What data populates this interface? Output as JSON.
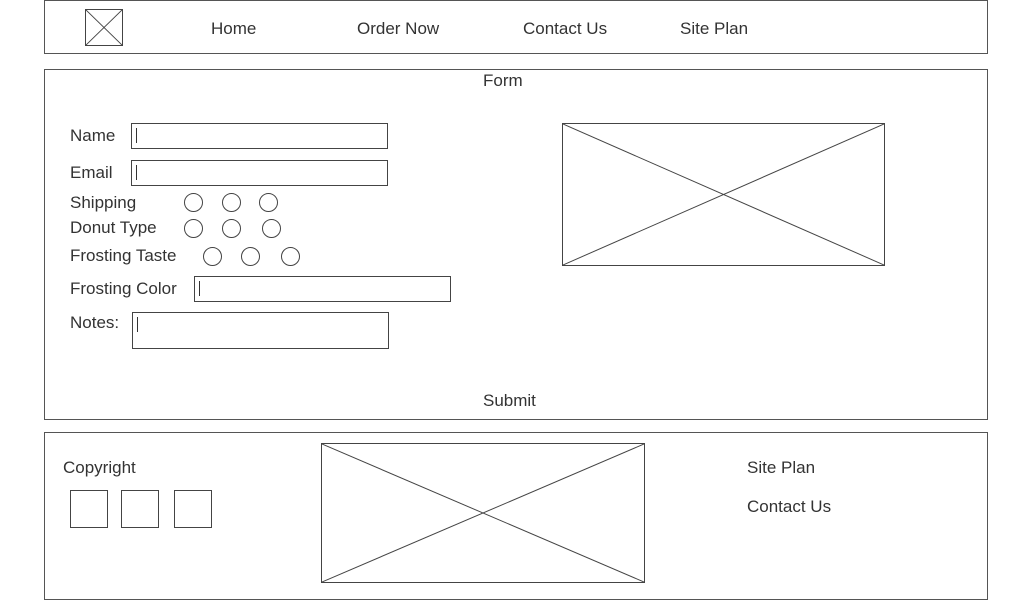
{
  "nav": {
    "items": [
      {
        "label": "Home"
      },
      {
        "label": "Order Now"
      },
      {
        "label": "Contact Us"
      },
      {
        "label": "Site Plan"
      }
    ]
  },
  "form": {
    "title": "Form",
    "name_label": "Name",
    "email_label": "Email",
    "shipping_label": "Shipping",
    "donut_type_label": "Donut Type",
    "frosting_taste_label": "Frosting Taste",
    "frosting_color_label": "Frosting Color",
    "notes_label": "Notes:",
    "submit_label": "Submit"
  },
  "footer": {
    "copyright": "Copyright",
    "links": [
      {
        "label": "Site Plan"
      },
      {
        "label": "Contact Us"
      }
    ]
  }
}
